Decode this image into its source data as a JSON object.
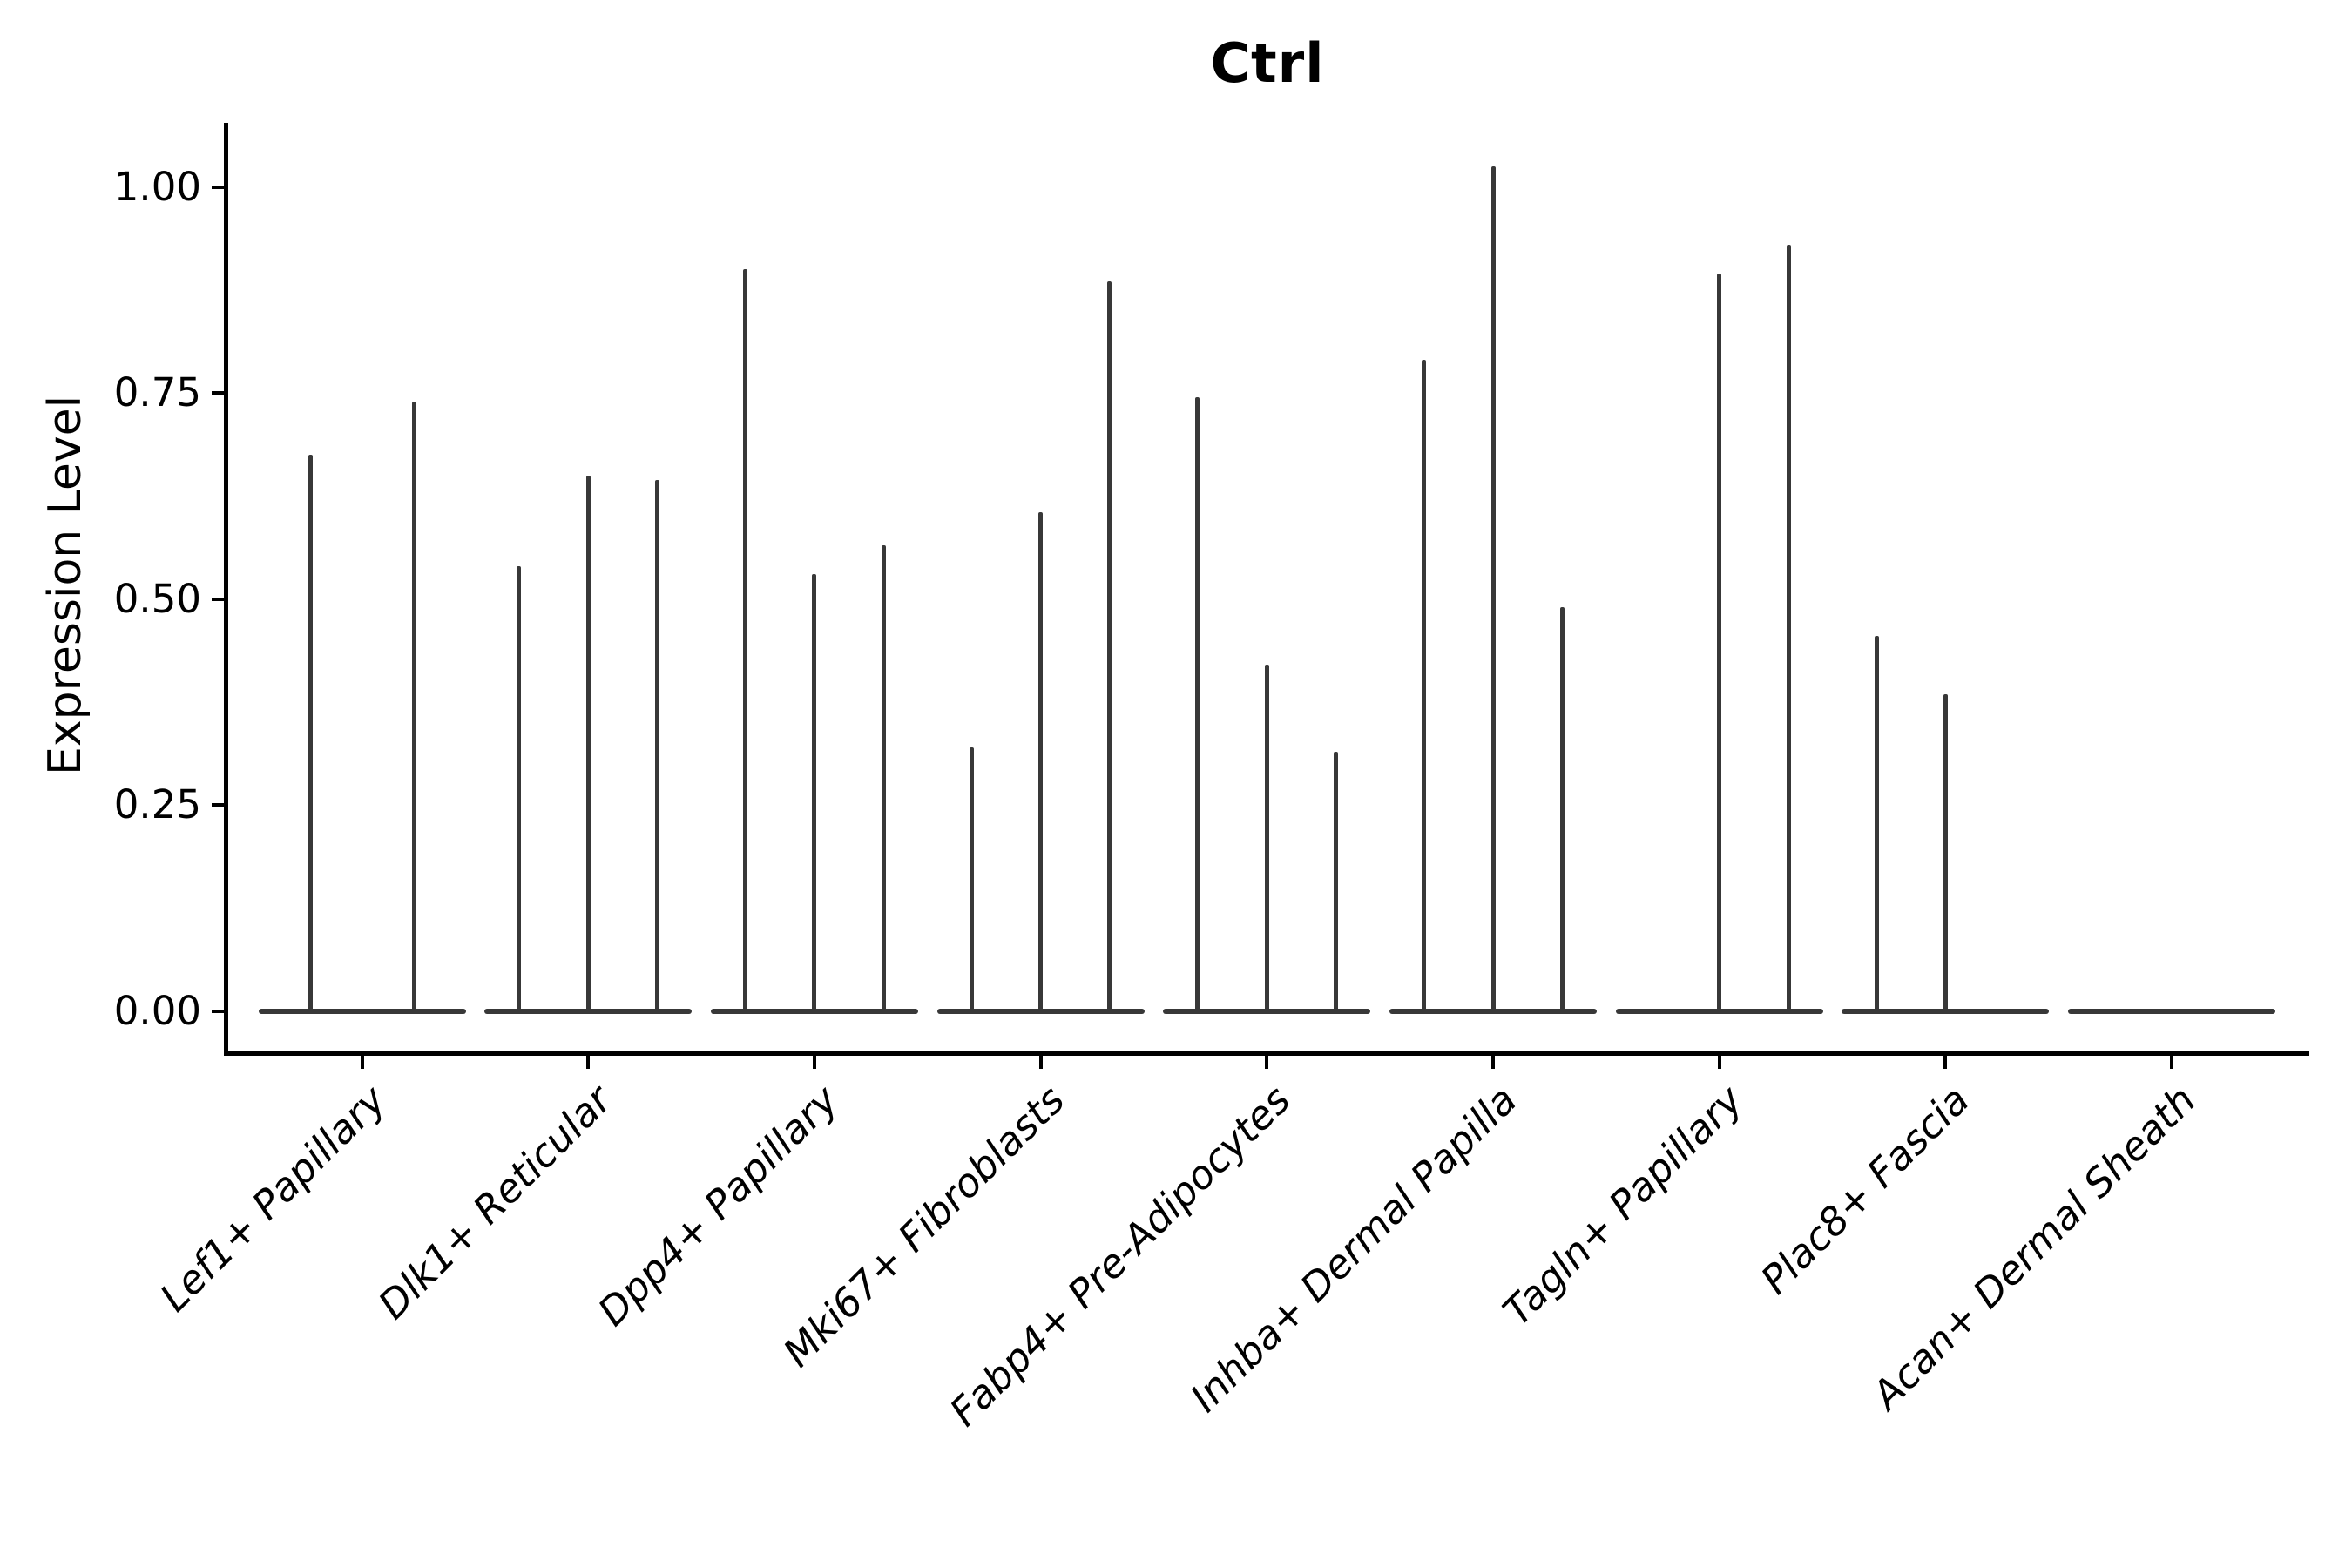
{
  "chart_data": {
    "type": "violin",
    "title": "Ctrl",
    "ylabel": "Expression Level",
    "xlabel": "",
    "legend": "none",
    "grid": false,
    "ylim": [
      0,
      1.08
    ],
    "y_ticks": [
      {
        "label": "1.00",
        "value": 1.0
      },
      {
        "label": "0.75",
        "value": 0.75
      },
      {
        "label": "0.50",
        "value": 0.5
      },
      {
        "label": "0.25",
        "value": 0.25
      },
      {
        "label": "0.00",
        "value": 0.0
      }
    ],
    "categories": [
      "Lef1+ Papillary",
      "Dlk1+ Reticular",
      "Dpp4+ Papillary",
      "Mki67+ Fibroblasts",
      "Fabp4+ Pre-Adipocytes",
      "Inhba+ Dermal Papilla",
      "Tagln+ Papillary",
      "Plac8+ Fascia",
      "Acan+ Dermal Sheath"
    ],
    "series": [
      {
        "category": "Lef1+ Papillary",
        "violin_peak_values": [
          0.675,
          0.74
        ]
      },
      {
        "category": "Dlk1+ Reticular",
        "violin_peak_values": [
          0.54,
          0.65,
          0.645
        ]
      },
      {
        "category": "Dpp4+ Papillary",
        "violin_peak_values": [
          0.9,
          0.53,
          0.565
        ]
      },
      {
        "category": "Mki67+ Fibroblasts",
        "violin_peak_values": [
          0.32,
          0.605,
          0.885
        ]
      },
      {
        "category": "Fabp4+ Pre-Adipocytes",
        "violin_peak_values": [
          0.745,
          0.42,
          0.315
        ]
      },
      {
        "category": "Inhba+ Dermal Papilla",
        "violin_peak_values": [
          0.79,
          1.025,
          0.49
        ]
      },
      {
        "category": "Tagln+ Papillary",
        "violin_peak_values": [
          null,
          0.895,
          0.93
        ]
      },
      {
        "category": "Plac8+ Fascia",
        "violin_peak_values": [
          0.455,
          0.385,
          null
        ]
      },
      {
        "category": "Acan+ Dermal Sheath",
        "violin_peak_values": [
          null,
          null,
          null
        ]
      }
    ],
    "colors": {
      "violin": "#383838",
      "axis": "#000000",
      "text": "#000000",
      "background": "#ffffff"
    }
  }
}
